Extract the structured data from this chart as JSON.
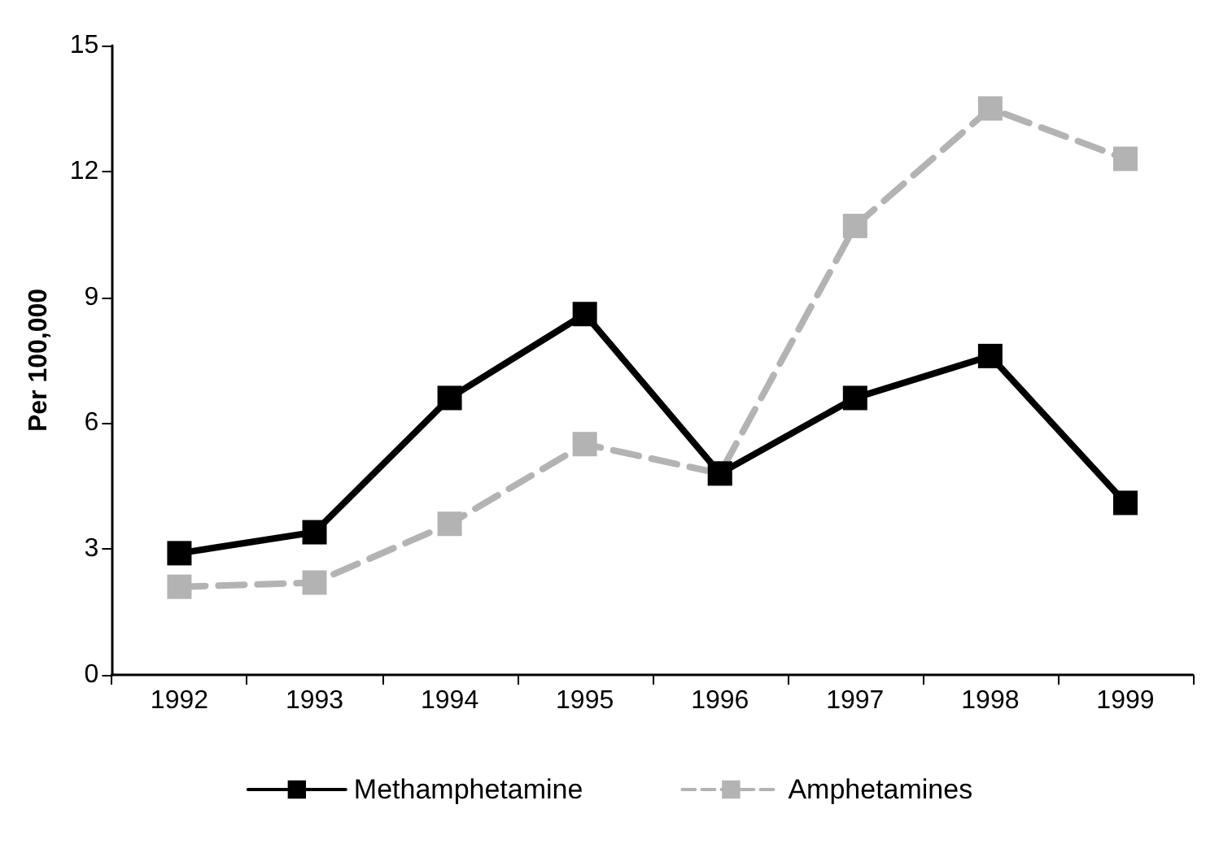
{
  "chart_data": {
    "type": "line",
    "ylabel": "Per 100,000",
    "categories": [
      "1992",
      "1993",
      "1994",
      "1995",
      "1996",
      "1997",
      "1998",
      "1999"
    ],
    "series": [
      {
        "name": "Methamphetamine",
        "color": "#000000",
        "line_style": "solid",
        "values": [
          2.9,
          3.4,
          6.6,
          8.6,
          4.8,
          6.6,
          7.6,
          4.1
        ]
      },
      {
        "name": "Amphetamines",
        "color": "#b3b3b3",
        "line_style": "dashed",
        "values": [
          2.1,
          2.2,
          3.6,
          5.5,
          4.8,
          10.7,
          13.5,
          12.3
        ]
      }
    ],
    "ylim": [
      0,
      15
    ],
    "yticks": [
      0,
      3,
      6,
      9,
      12,
      15
    ],
    "grid": false,
    "legend": "bottom",
    "marker": "square"
  }
}
